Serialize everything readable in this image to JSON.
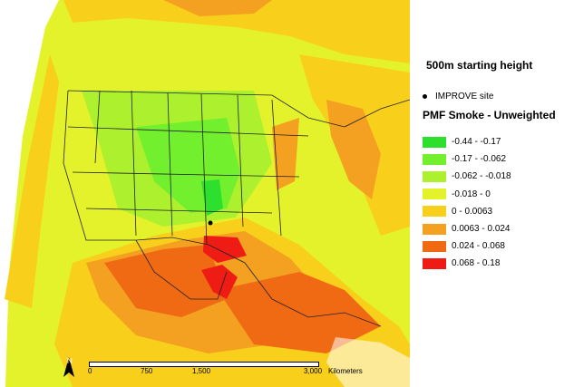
{
  "map": {
    "title": "500m starting height",
    "site_legend_label": "IMPROVE site",
    "legend_title": "PMF Smoke - Unweighted",
    "legend_items": [
      {
        "label": "-0.44 - -0.17",
        "color": "#2ee02e"
      },
      {
        "label": "-0.17 - -0.062",
        "color": "#72f02e"
      },
      {
        "label": "-0.062 - -0.018",
        "color": "#acf02e"
      },
      {
        "label": "-0.018 - 0",
        "color": "#e4f22c"
      },
      {
        "label": "0 - 0.0063",
        "color": "#f8d01c"
      },
      {
        "label": "0.0063 - 0.024",
        "color": "#f4a020"
      },
      {
        "label": "0.024 - 0.068",
        "color": "#f06a14"
      },
      {
        "label": "0.068 - 0.18",
        "color": "#ee1c14"
      }
    ],
    "scale": {
      "ticks": [
        "0",
        "750",
        "1,500",
        "3,000"
      ],
      "unit": "Kilometers"
    },
    "north_label": "N"
  }
}
